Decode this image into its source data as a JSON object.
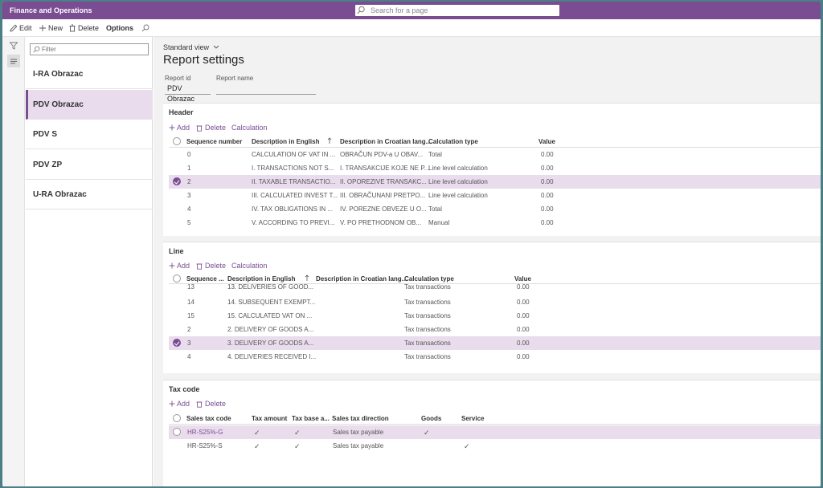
{
  "app": {
    "title": "Finance and Operations"
  },
  "search": {
    "placeholder": "Search for a page"
  },
  "actions": {
    "edit": "Edit",
    "new": "New",
    "delete": "Delete",
    "options": "Options"
  },
  "list": {
    "filter_placeholder": "Filter",
    "items": [
      {
        "label": "I-RA Obrazac",
        "selected": false
      },
      {
        "label": "PDV Obrazac",
        "selected": true
      },
      {
        "label": "PDV S",
        "selected": false
      },
      {
        "label": "PDV ZP",
        "selected": false
      },
      {
        "label": "U-RA Obrazac",
        "selected": false
      }
    ]
  },
  "main": {
    "view": "Standard view",
    "title": "Report settings",
    "report_id_label": "Report id",
    "report_id_value": "PDV Obrazac",
    "report_name_label": "Report name",
    "report_name_value": ""
  },
  "header_section": {
    "title": "Header",
    "toolbar": {
      "add": "Add",
      "delete": "Delete",
      "calculation": "Calculation"
    },
    "columns": [
      "Sequence number",
      "Description in English",
      "Description in Croatian lang...",
      "Calculation type",
      "Value"
    ],
    "rows": [
      {
        "seq": "0",
        "en": "CALCULATION OF VAT IN ...",
        "hr": "OBRAČUN PDV-a U OBAV...",
        "type": "Total",
        "value": "0.00",
        "selected": false
      },
      {
        "seq": "1",
        "en": "I. TRANSACTIONS NOT S...",
        "hr": "I. TRANSAKCIJE KOJE NE P...",
        "type": "Line level calculation",
        "value": "0.00",
        "selected": false
      },
      {
        "seq": "2",
        "en": "II. TAXABLE TRANSACTIO...",
        "hr": "II. OPOREZIVE TRANSAKC...",
        "type": "Line level calculation",
        "value": "0.00",
        "selected": true
      },
      {
        "seq": "3",
        "en": "III. CALCULATED INVEST T...",
        "hr": "III. OBRAČUNANI PRETPO...",
        "type": "Line level calculation",
        "value": "0.00",
        "selected": false
      },
      {
        "seq": "4",
        "en": "IV. TAX OBLIGATIONS IN ...",
        "hr": "IV. POREZNE OBVEZE U O...",
        "type": "Total",
        "value": "0.00",
        "selected": false
      },
      {
        "seq": "5",
        "en": "V. ACCORDING TO PREVI...",
        "hr": "V. PO PRETHODNOM OB...",
        "type": "Manual",
        "value": "0.00",
        "selected": false
      }
    ]
  },
  "line_section": {
    "title": "Line",
    "toolbar": {
      "add": "Add",
      "delete": "Delete",
      "calculation": "Calculation"
    },
    "columns": [
      "Sequence ...",
      "Description in English",
      "Description in Croatian lang...",
      "Calculation type",
      "Value"
    ],
    "rows": [
      {
        "seq": "13",
        "en": "13. DELIVERIES OF GOOD...",
        "type": "Tax transactions",
        "value": "0.00",
        "selected": false
      },
      {
        "seq": "14",
        "en": "14. SUBSEQUENT EXEMPT...",
        "type": "Tax transactions",
        "value": "0.00",
        "selected": false
      },
      {
        "seq": "15",
        "en": "15. CALCULATED VAT ON ...",
        "type": "Tax transactions",
        "value": "0.00",
        "selected": false
      },
      {
        "seq": "2",
        "en": "2. DELIVERY OF GOODS A...",
        "type": "Tax transactions",
        "value": "0.00",
        "selected": false
      },
      {
        "seq": "3",
        "en": "3. DELIVERY OF GOODS A...",
        "type": "Tax transactions",
        "value": "0.00",
        "selected": true
      },
      {
        "seq": "4",
        "en": "4. DELIVERIES RECEIVED I...",
        "type": "Tax transactions",
        "value": "0.00",
        "selected": false
      }
    ]
  },
  "taxcode_section": {
    "title": "Tax code",
    "toolbar": {
      "add": "Add",
      "delete": "Delete"
    },
    "columns": [
      "Sales tax code",
      "Tax amount",
      "Tax base a...",
      "Sales tax direction",
      "Goods",
      "Service"
    ],
    "rows": [
      {
        "code": "HR-S25%-G",
        "tax_amount": true,
        "tax_base": true,
        "direction": "Sales tax payable",
        "goods": true,
        "service": false,
        "selected": true
      },
      {
        "code": "HR-S25%-S",
        "tax_amount": true,
        "tax_base": true,
        "direction": "Sales tax payable",
        "goods": false,
        "service": true,
        "selected": false
      }
    ]
  },
  "icons": {
    "search": "search-icon",
    "edit": "pencil-icon",
    "new": "plus-icon",
    "delete": "trash-icon",
    "filter": "funnel-icon",
    "list": "list-icon"
  },
  "colors": {
    "brand": "#7a4d93",
    "selected_bg": "#e9dced"
  }
}
